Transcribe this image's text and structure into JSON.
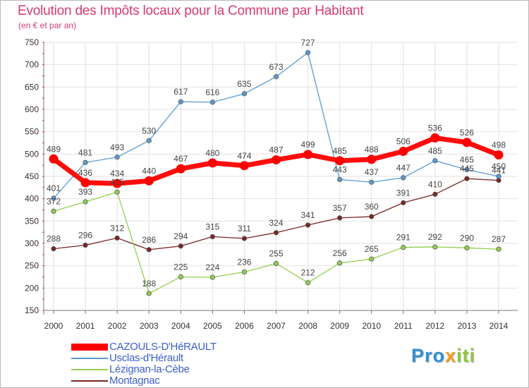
{
  "title": "Evolution des Impôts locaux pour la Commune par Habitant",
  "subtitle": "(en € et par an)",
  "logo": {
    "part1": "Pro",
    "part2": "x",
    "part3": "iti"
  },
  "chart_data": {
    "type": "line",
    "title": "Evolution des Impôts locaux pour la Commune par Habitant",
    "subtitle": "(en € et par an)",
    "xlabel": "",
    "ylabel": "",
    "ylim": [
      150,
      750
    ],
    "yticks": [
      150,
      200,
      250,
      300,
      350,
      400,
      450,
      500,
      550,
      600,
      650,
      700,
      750
    ],
    "grid": true,
    "legend_position": "bottom-left",
    "x": [
      "2000",
      "2001",
      "2002",
      "2003",
      "2004",
      "2005",
      "2006",
      "2007",
      "2008",
      "2009",
      "2010",
      "2011",
      "2012",
      "2013",
      "2014"
    ],
    "series": [
      {
        "name": "CAZOULS-D'HéRAULT",
        "color": "#ff0000",
        "values": [
          489,
          436,
          434,
          440,
          467,
          480,
          474,
          487,
          499,
          485,
          488,
          506,
          536,
          526,
          498
        ]
      },
      {
        "name": "Usclas-d'Hérault",
        "color": "#5b9bd5",
        "values": [
          401,
          481,
          493,
          530,
          617,
          616,
          635,
          673,
          727,
          443,
          437,
          447,
          485,
          465,
          450
        ]
      },
      {
        "name": "Lézignan-la-Cèbe",
        "color": "#92d050",
        "values": [
          372,
          393,
          415,
          188,
          225,
          224,
          236,
          255,
          212,
          256,
          265,
          291,
          292,
          290,
          287
        ]
      },
      {
        "name": "Montagnac",
        "color": "#7b2525",
        "values": [
          288,
          296,
          312,
          286,
          294,
          315,
          311,
          324,
          341,
          357,
          360,
          391,
          410,
          445,
          441
        ]
      }
    ]
  }
}
